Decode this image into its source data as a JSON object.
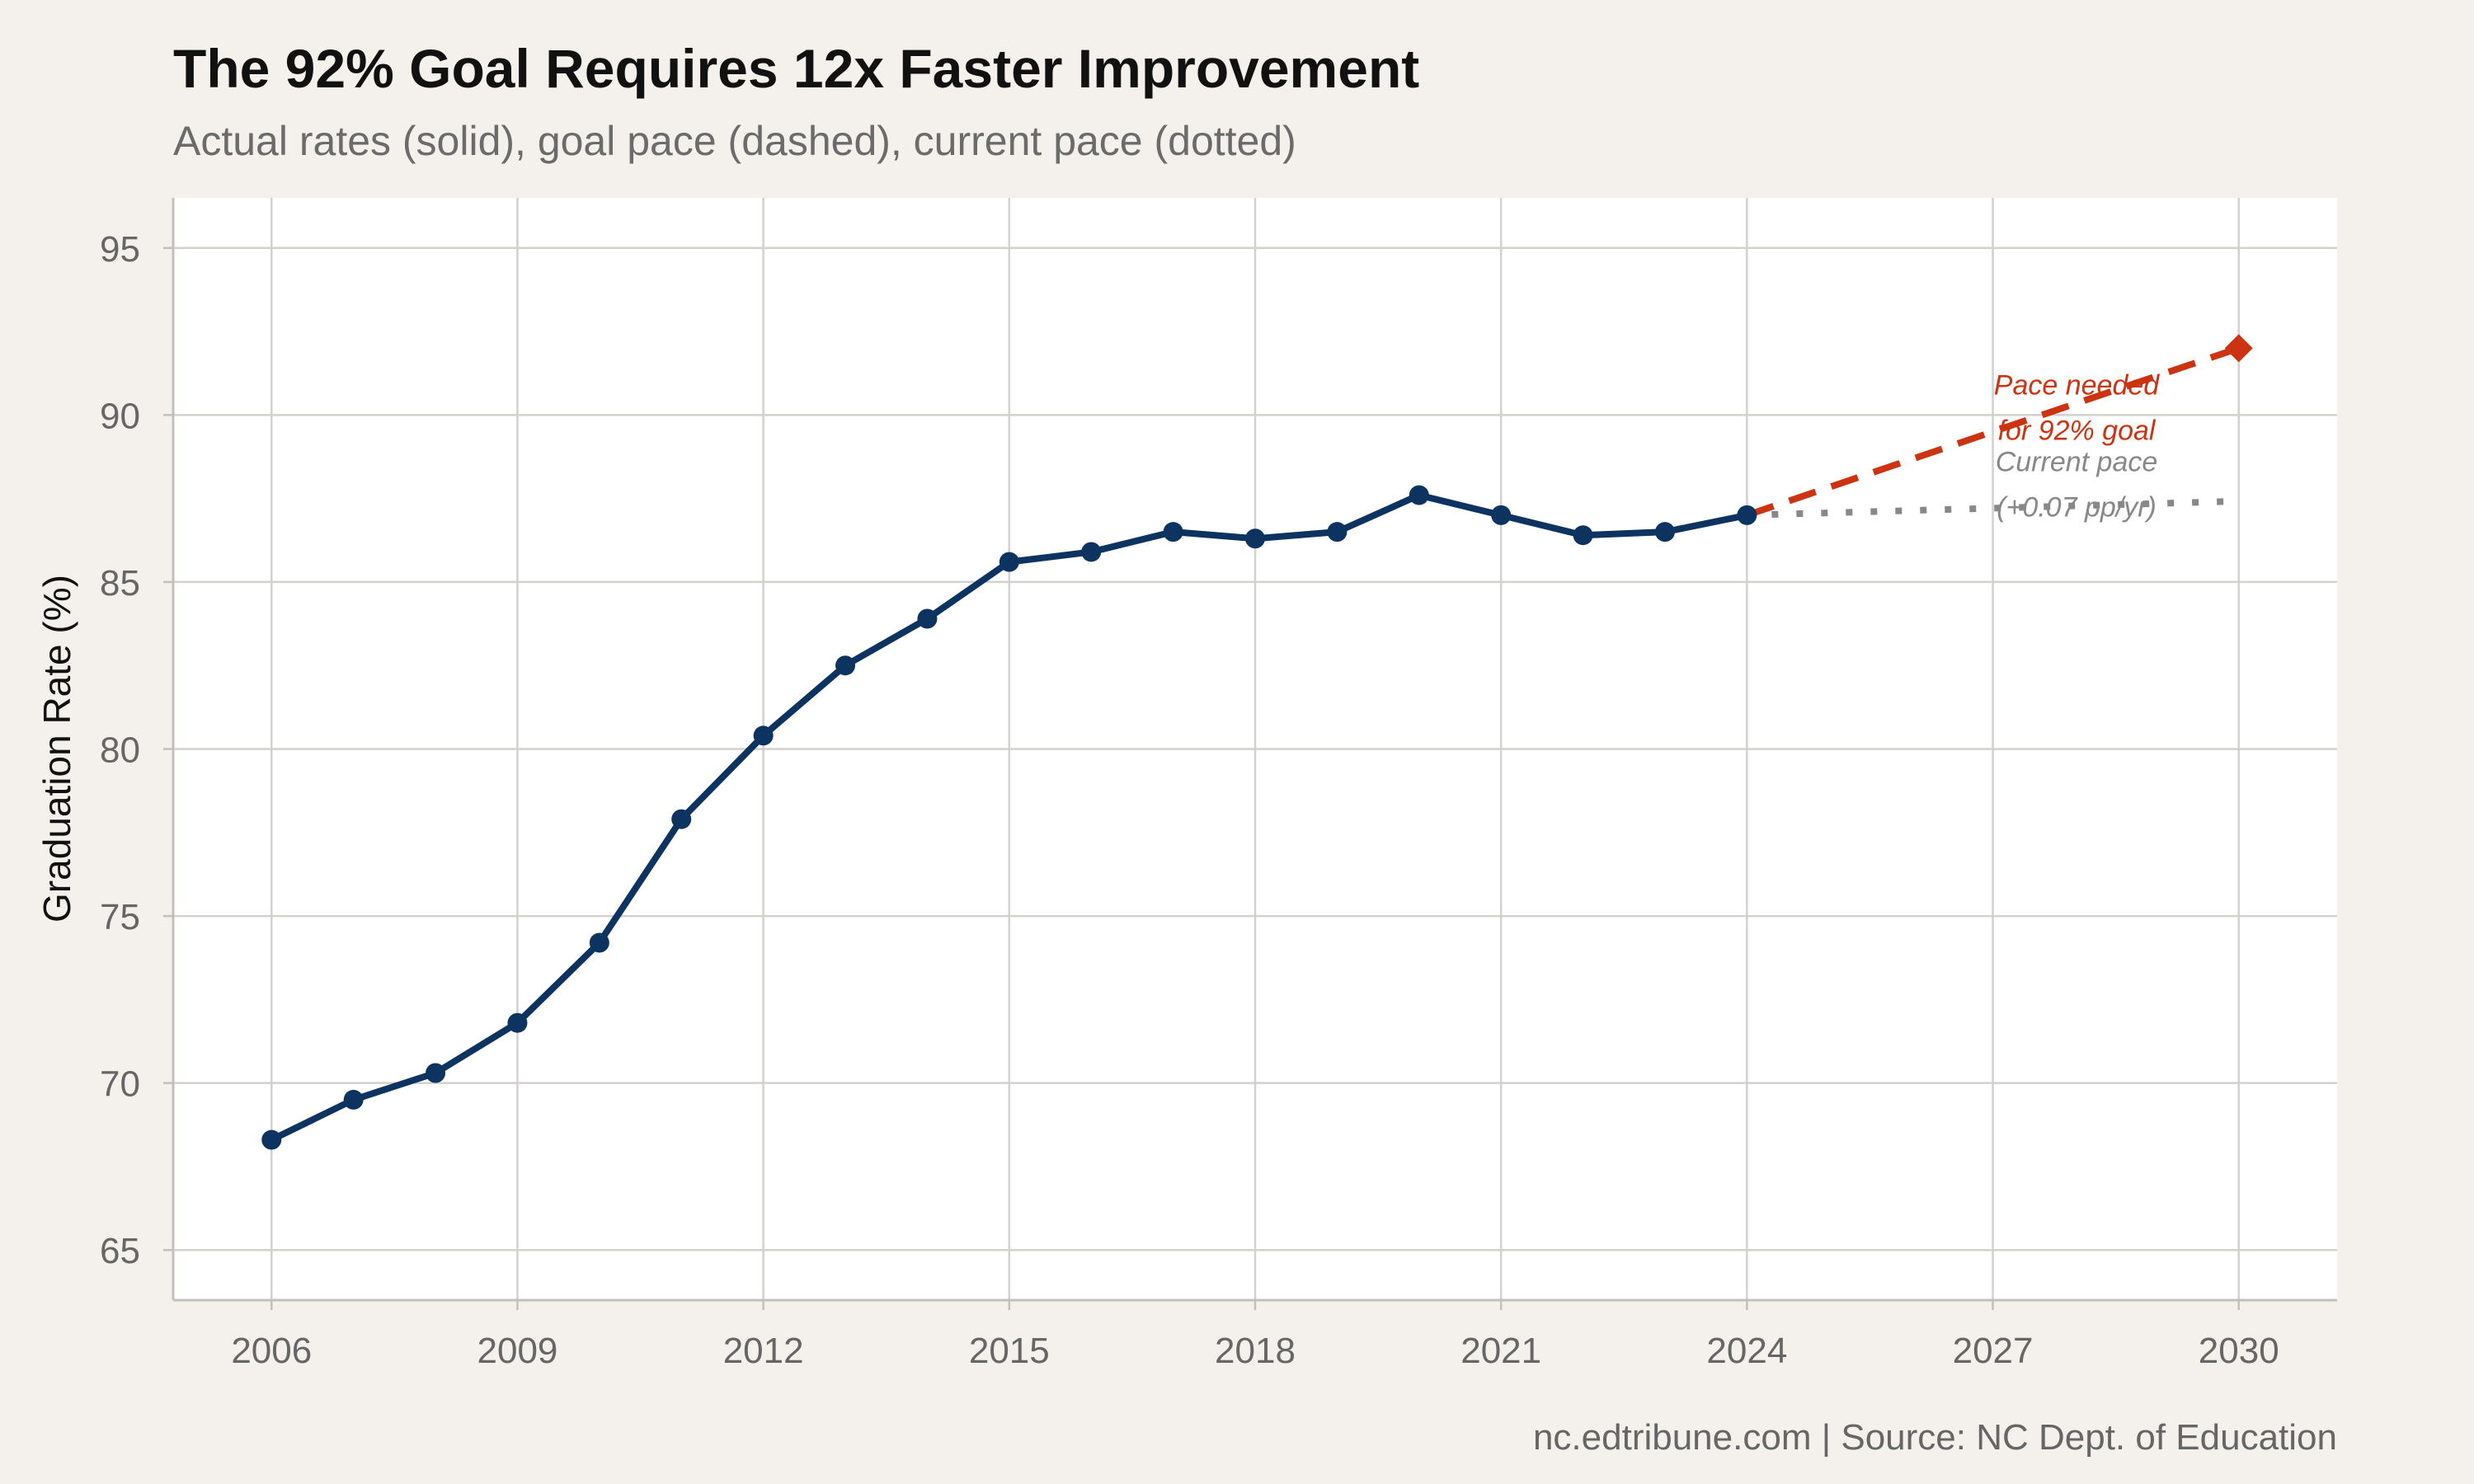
{
  "chart_data": {
    "type": "line",
    "title": "The 92% Goal Requires 12x Faster Improvement",
    "subtitle": "Actual rates (solid), goal pace (dashed), current pace (dotted)",
    "ylabel": "Graduation Rate (%)",
    "xlabel": "",
    "caption": "nc.edtribune.com | Source: NC Dept. of Education",
    "xlim": [
      2004.8,
      2031.2
    ],
    "ylim": [
      63.5,
      96.5
    ],
    "xticks": [
      2006,
      2009,
      2012,
      2015,
      2018,
      2021,
      2024,
      2027,
      2030
    ],
    "yticks": [
      65,
      70,
      75,
      80,
      85,
      90,
      95
    ],
    "grid": true,
    "series": [
      {
        "style": "solid",
        "color": "#0d3361",
        "x": [
          2006,
          2007,
          2008,
          2009,
          2010,
          2011,
          2012,
          2013,
          2014,
          2015,
          2016,
          2017,
          2018,
          2019,
          2020,
          2021,
          2022,
          2023,
          2024
        ],
        "y": [
          68.3,
          69.5,
          70.3,
          71.8,
          74.2,
          77.9,
          80.4,
          82.5,
          83.9,
          85.6,
          85.9,
          86.5,
          86.3,
          86.5,
          87.6,
          87.0,
          86.4,
          86.5,
          87.0
        ]
      },
      {
        "style": "dashed",
        "color": "#cc3311",
        "x": [
          2024,
          2030
        ],
        "y": [
          87.0,
          92.0
        ],
        "end_marker": "diamond"
      },
      {
        "style": "dotted",
        "color": "#888888",
        "x": [
          2024,
          2030
        ],
        "y": [
          87.0,
          87.42
        ]
      }
    ],
    "annotations": [
      {
        "lines": [
          "Pace needed",
          "for 92% goal"
        ],
        "color": "#cc3311"
      },
      {
        "lines": [
          "Current pace",
          "(+0.07 pp/yr)"
        ],
        "color": "#888888"
      }
    ]
  }
}
